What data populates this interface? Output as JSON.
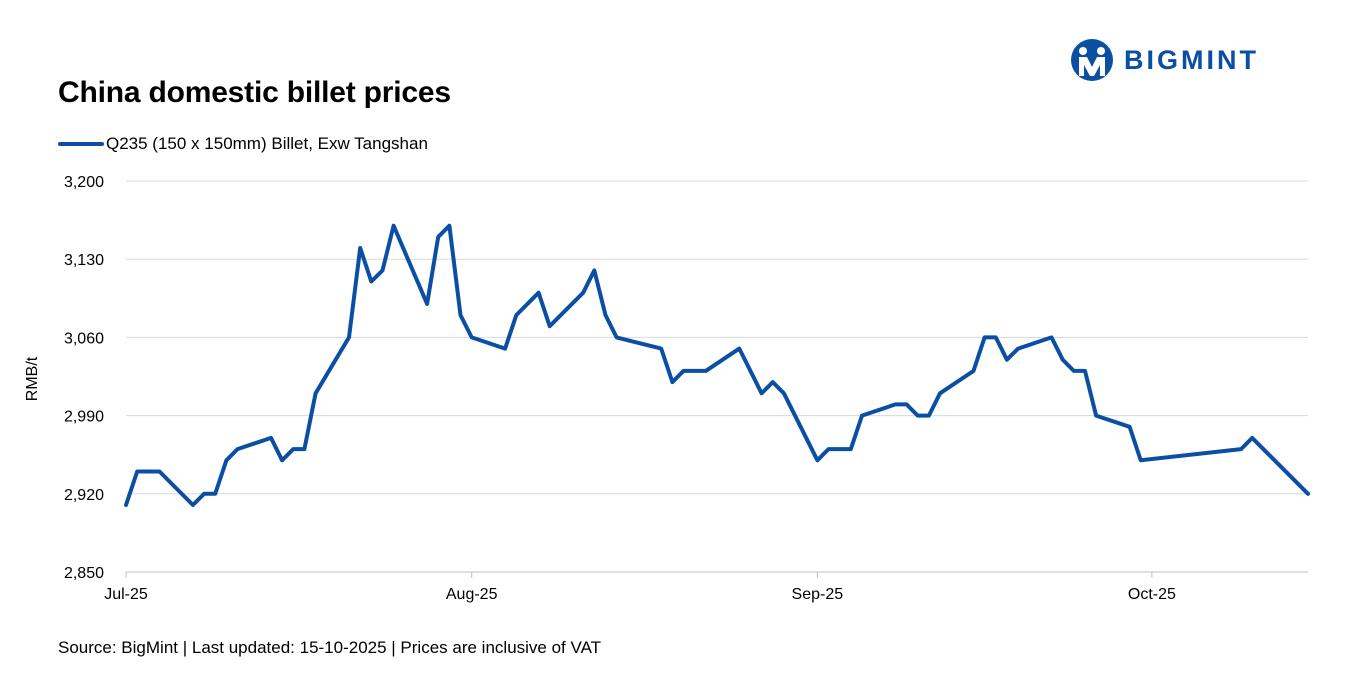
{
  "header": {
    "title": "China domestic billet prices",
    "brand": "BIGMINT"
  },
  "colors": {
    "series": "#0a4fa3",
    "brand": "#0a4fa3",
    "grid": "#d9d9d9",
    "axis": "#bfbfbf"
  },
  "footer": {
    "source": "Source: BigMint | Last updated: 15-10-2025 | Prices are inclusive of VAT"
  },
  "chart_data": {
    "type": "line",
    "title": "China domestic billet prices",
    "xlabel": "",
    "ylabel": "RMB/t",
    "ylim": [
      2850,
      3200
    ],
    "yticks": [
      2850,
      2920,
      2990,
      3060,
      3130,
      3200
    ],
    "ytick_labels": [
      "2,850",
      "2,920",
      "2,990",
      "3,060",
      "3,130",
      "3,200"
    ],
    "xlim": [
      "2025-07-01",
      "2025-10-15"
    ],
    "xticks": [
      {
        "date": "2025-07-01",
        "label": "Jul-25"
      },
      {
        "date": "2025-08-01",
        "label": "Aug-25"
      },
      {
        "date": "2025-09-01",
        "label": "Sep-25"
      },
      {
        "date": "2025-10-01",
        "label": "Oct-25"
      }
    ],
    "grid": true,
    "legend_position": "top-left",
    "series": [
      {
        "name": "Q235 (150 x 150mm) Billet, Exw Tangshan",
        "points": [
          [
            "2025-07-01",
            2910
          ],
          [
            "2025-07-02",
            2940
          ],
          [
            "2025-07-03",
            2940
          ],
          [
            "2025-07-04",
            2940
          ],
          [
            "2025-07-07",
            2910
          ],
          [
            "2025-07-08",
            2920
          ],
          [
            "2025-07-09",
            2920
          ],
          [
            "2025-07-10",
            2950
          ],
          [
            "2025-07-11",
            2960
          ],
          [
            "2025-07-14",
            2970
          ],
          [
            "2025-07-15",
            2950
          ],
          [
            "2025-07-16",
            2960
          ],
          [
            "2025-07-17",
            2960
          ],
          [
            "2025-07-18",
            3010
          ],
          [
            "2025-07-21",
            3060
          ],
          [
            "2025-07-22",
            3140
          ],
          [
            "2025-07-23",
            3110
          ],
          [
            "2025-07-24",
            3120
          ],
          [
            "2025-07-25",
            3160
          ],
          [
            "2025-07-28",
            3090
          ],
          [
            "2025-07-29",
            3150
          ],
          [
            "2025-07-30",
            3160
          ],
          [
            "2025-07-31",
            3080
          ],
          [
            "2025-08-01",
            3060
          ],
          [
            "2025-08-04",
            3050
          ],
          [
            "2025-08-05",
            3080
          ],
          [
            "2025-08-07",
            3100
          ],
          [
            "2025-08-08",
            3070
          ],
          [
            "2025-08-11",
            3100
          ],
          [
            "2025-08-12",
            3120
          ],
          [
            "2025-08-13",
            3080
          ],
          [
            "2025-08-14",
            3060
          ],
          [
            "2025-08-18",
            3050
          ],
          [
            "2025-08-19",
            3020
          ],
          [
            "2025-08-20",
            3030
          ],
          [
            "2025-08-22",
            3030
          ],
          [
            "2025-08-25",
            3050
          ],
          [
            "2025-08-27",
            3010
          ],
          [
            "2025-08-28",
            3020
          ],
          [
            "2025-08-29",
            3010
          ],
          [
            "2025-09-01",
            2950
          ],
          [
            "2025-09-02",
            2960
          ],
          [
            "2025-09-04",
            2960
          ],
          [
            "2025-09-05",
            2990
          ],
          [
            "2025-09-08",
            3000
          ],
          [
            "2025-09-09",
            3000
          ],
          [
            "2025-09-10",
            2990
          ],
          [
            "2025-09-11",
            2990
          ],
          [
            "2025-09-12",
            3010
          ],
          [
            "2025-09-15",
            3030
          ],
          [
            "2025-09-16",
            3060
          ],
          [
            "2025-09-17",
            3060
          ],
          [
            "2025-09-18",
            3040
          ],
          [
            "2025-09-19",
            3050
          ],
          [
            "2025-09-22",
            3060
          ],
          [
            "2025-09-23",
            3040
          ],
          [
            "2025-09-24",
            3030
          ],
          [
            "2025-09-25",
            3030
          ],
          [
            "2025-09-26",
            2990
          ],
          [
            "2025-09-29",
            2980
          ],
          [
            "2025-09-30",
            2950
          ],
          [
            "2025-10-09",
            2960
          ],
          [
            "2025-10-10",
            2970
          ],
          [
            "2025-10-15",
            2920
          ]
        ]
      }
    ]
  }
}
